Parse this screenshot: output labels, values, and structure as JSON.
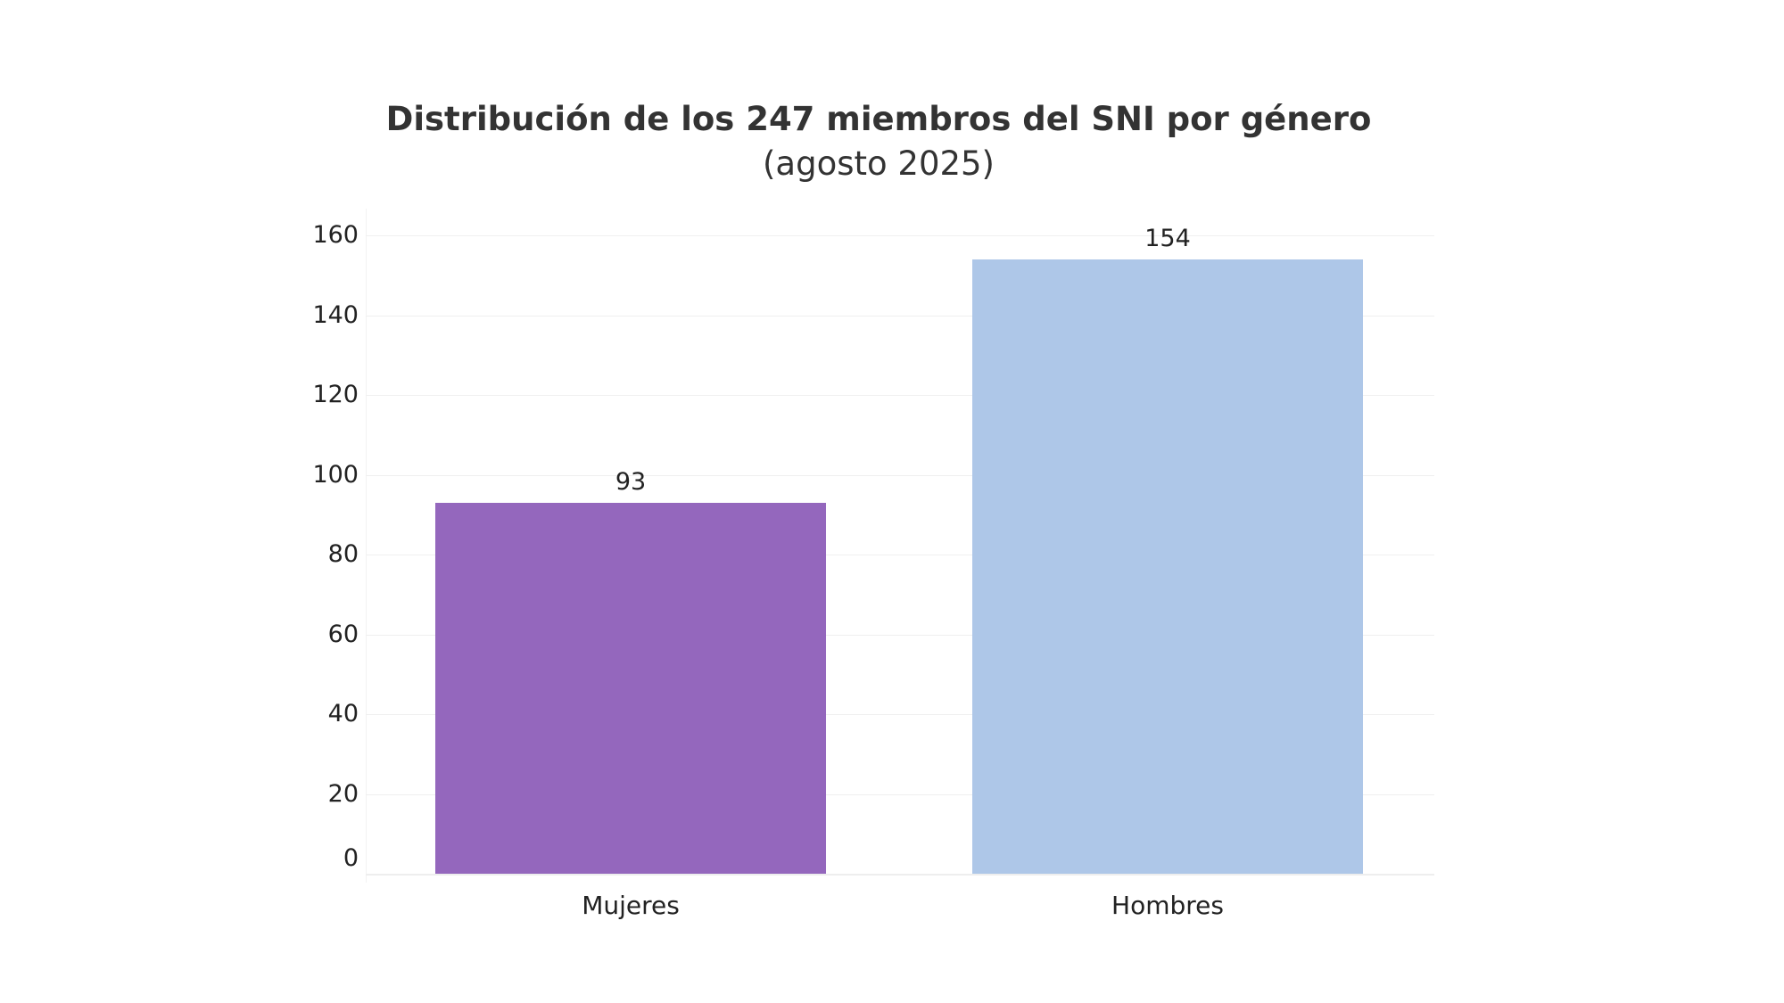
{
  "chart_data": {
    "type": "bar",
    "title": "Distribución de los 247 miembros del SNI por género",
    "subtitle": "(agosto 2025)",
    "categories": [
      "Mujeres",
      "Hombres"
    ],
    "values": [
      93,
      154
    ],
    "colors": [
      "#9467bd",
      "#aec7e8"
    ],
    "xlabel": "",
    "ylabel": "",
    "ylim": [
      0,
      160
    ],
    "yticks": [
      0,
      20,
      40,
      60,
      80,
      100,
      120,
      140,
      160
    ],
    "ytick_labels": [
      "0",
      "20",
      "40",
      "60",
      "80",
      "100",
      "120",
      "140",
      "160"
    ],
    "data_labels": [
      "93",
      "154"
    ],
    "grid": true,
    "legend": null
  }
}
